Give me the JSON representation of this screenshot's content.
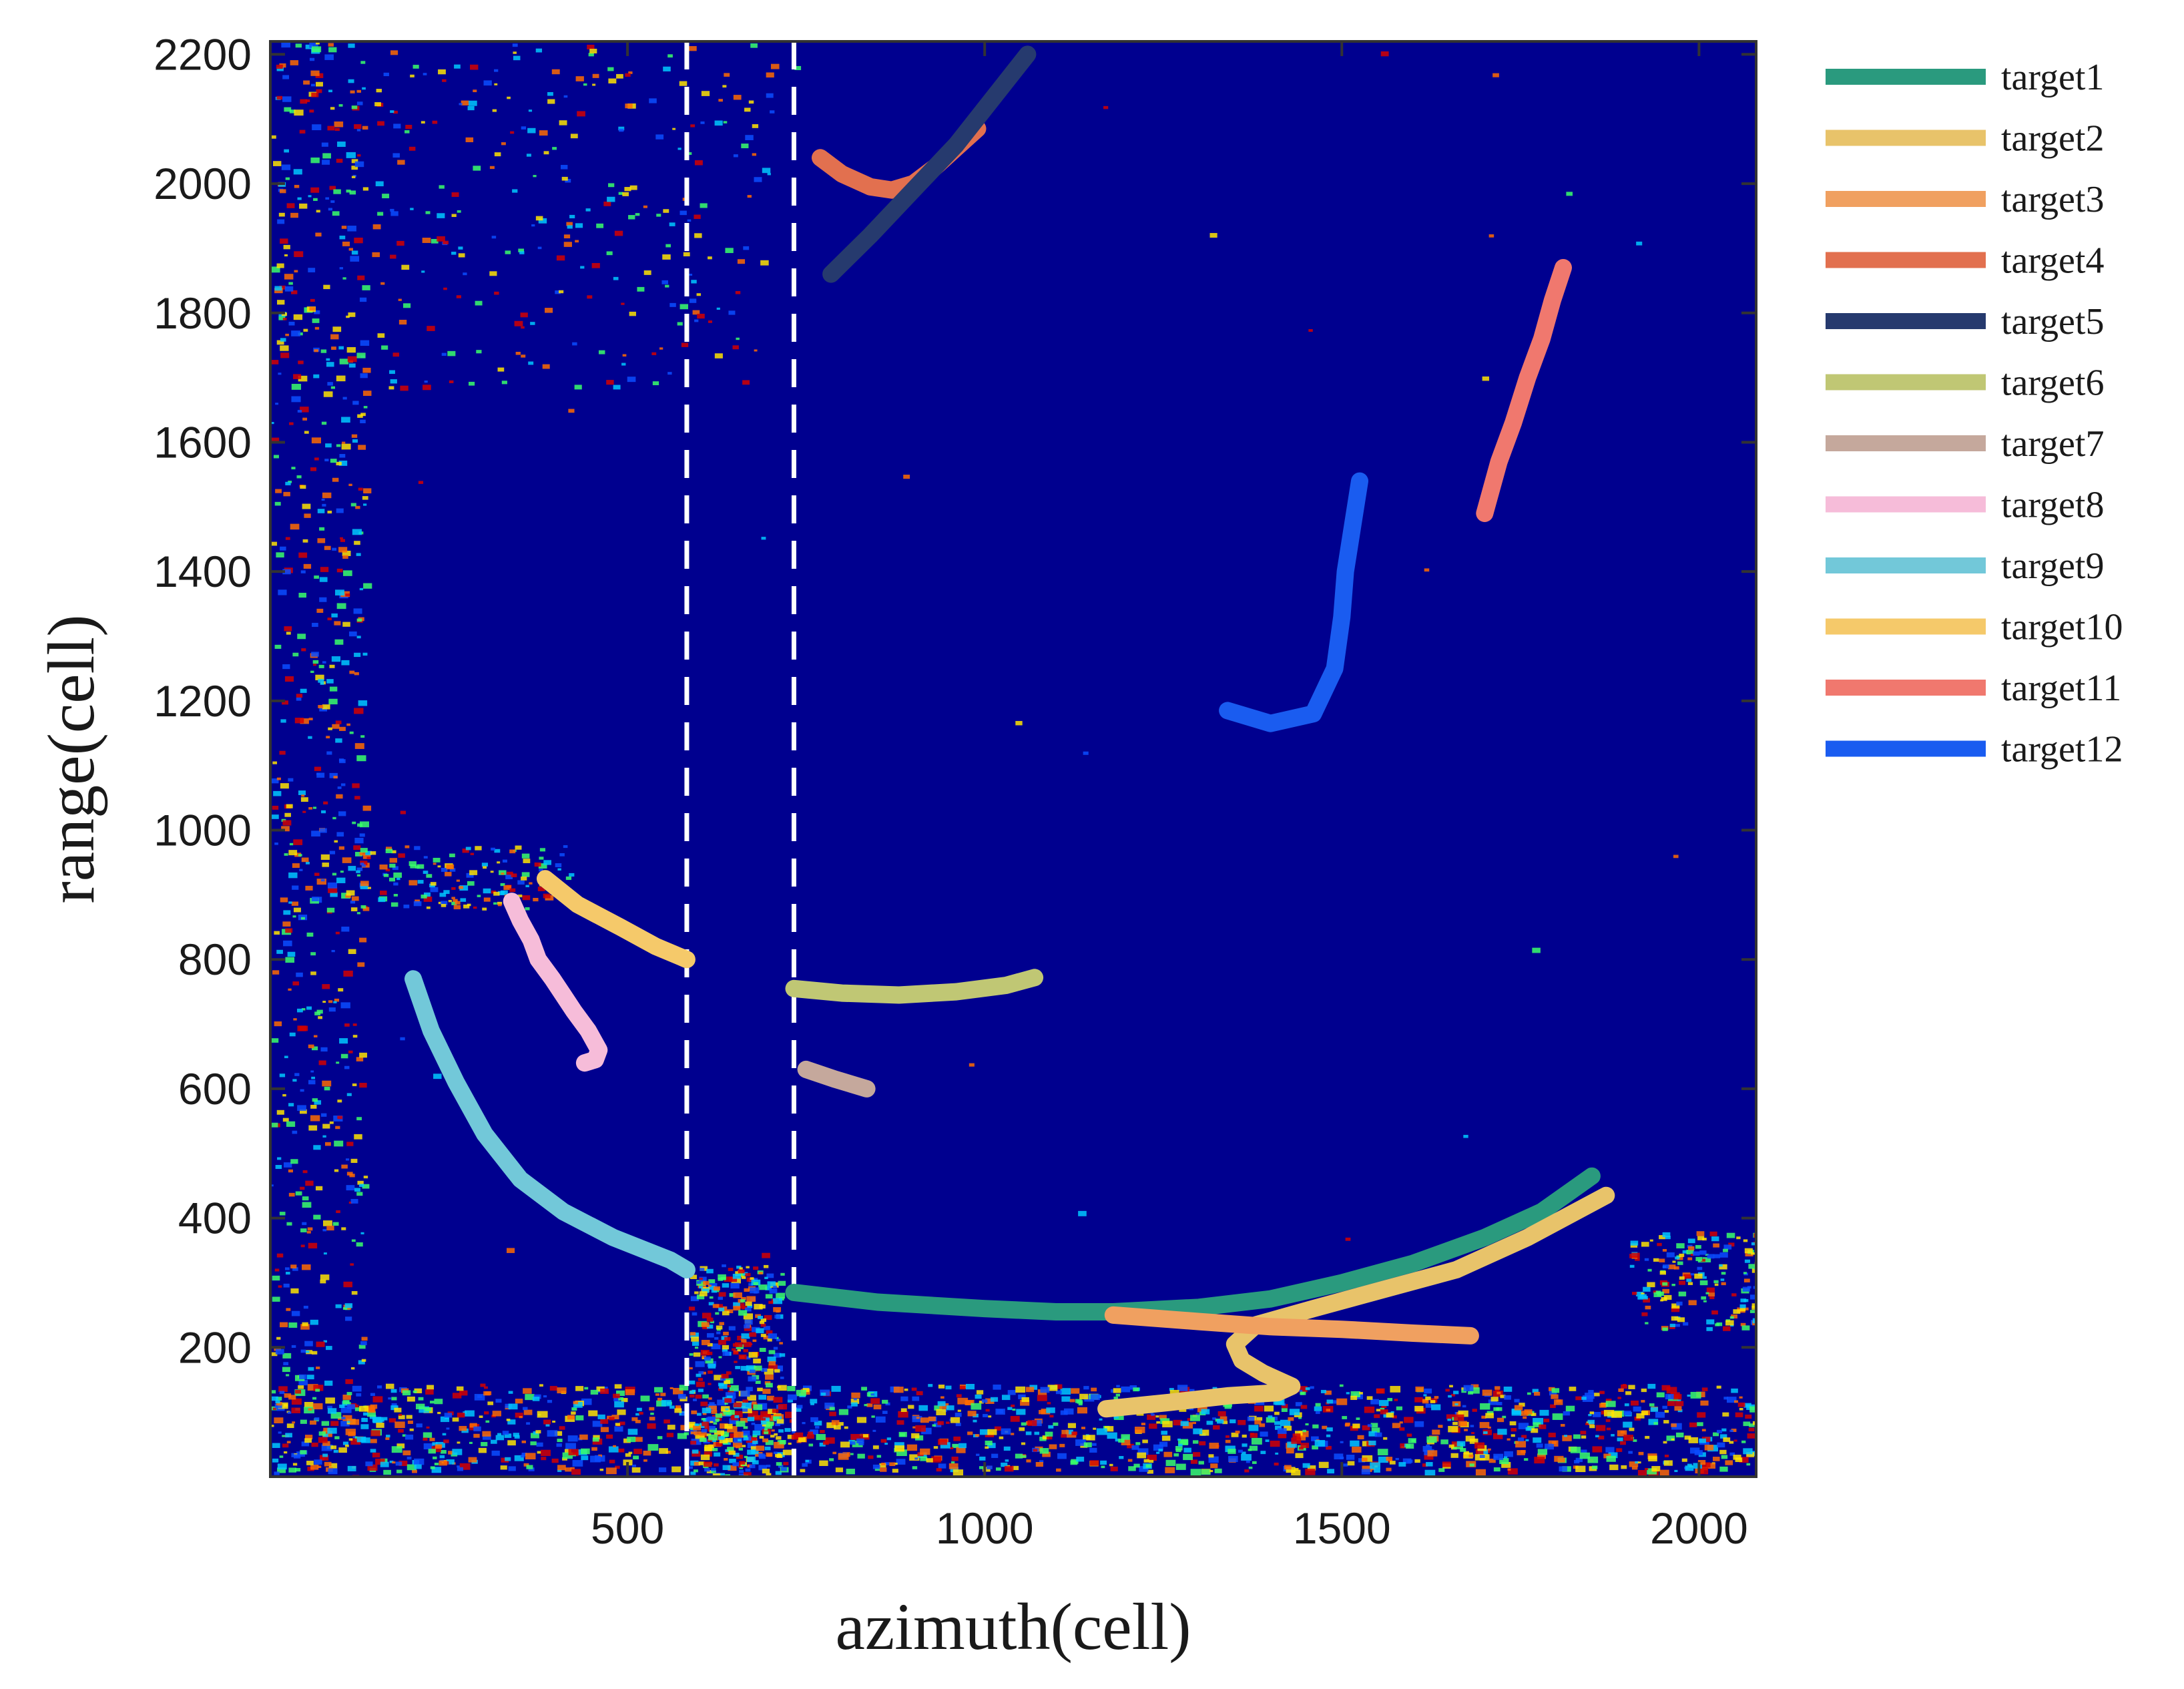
{
  "chart_data": {
    "type": "line",
    "xlabel": "azimuth(cell)",
    "ylabel": "range(cell)",
    "xlim": [
      0,
      2080
    ],
    "ylim": [
      0,
      2220
    ],
    "xticks": [
      500,
      1000,
      1500,
      2000
    ],
    "yticks": [
      200,
      400,
      600,
      800,
      1000,
      1200,
      1400,
      1600,
      1800,
      2000,
      2200
    ],
    "background": "range-azimuth heatmap (jet colormap, mostly dark blue)",
    "grid": false,
    "legend_position": "outside-right",
    "dashed_vertical_lines": [
      583,
      733
    ],
    "series": [
      {
        "name": "target1",
        "color": "#2a9a7e",
        "x": [
          733,
          850,
          1000,
          1100,
          1180,
          1300,
          1400,
          1500,
          1600,
          1700,
          1780,
          1850
        ],
        "y": [
          285,
          270,
          260,
          255,
          255,
          262,
          275,
          300,
          330,
          370,
          410,
          465
        ]
      },
      {
        "name": "target2",
        "color": "#e8c36a",
        "x": [
          1170,
          1260,
          1340,
          1410,
          1430,
          1390,
          1360,
          1350,
          1380,
          1460,
          1560,
          1660,
          1760,
          1870
        ],
        "y": [
          105,
          115,
          125,
          130,
          140,
          160,
          180,
          205,
          235,
          260,
          290,
          320,
          370,
          435
        ]
      },
      {
        "name": "target3",
        "color": "#f0a060",
        "x": [
          1180,
          1300,
          1400,
          1500,
          1600,
          1680
        ],
        "y": [
          250,
          240,
          232,
          228,
          222,
          218
        ]
      },
      {
        "name": "target4",
        "color": "#e2704f",
        "x": [
          770,
          800,
          840,
          870,
          900,
          930,
          960,
          990
        ],
        "y": [
          2040,
          2015,
          1995,
          1990,
          2000,
          2025,
          2055,
          2085
        ]
      },
      {
        "name": "target5",
        "color": "#263a6e",
        "x": [
          785,
          840,
          900,
          960,
          1010,
          1060
        ],
        "y": [
          1860,
          1920,
          1990,
          2060,
          2130,
          2200
        ]
      },
      {
        "name": "target6",
        "color": "#c0c774",
        "x": [
          733,
          800,
          880,
          960,
          1030,
          1070
        ],
        "y": [
          755,
          748,
          745,
          750,
          760,
          772
        ]
      },
      {
        "name": "target7",
        "color": "#c5a89c",
        "x": [
          750,
          790,
          835
        ],
        "y": [
          630,
          615,
          600
        ]
      },
      {
        "name": "target8",
        "color": "#f6bcd9",
        "x": [
          338,
          350,
          365,
          375,
          395,
          410,
          425,
          445,
          460,
          455,
          440
        ],
        "y": [
          890,
          860,
          830,
          800,
          770,
          745,
          720,
          690,
          660,
          645,
          640
        ]
      },
      {
        "name": "target9",
        "color": "#72c8d9",
        "x": [
          200,
          225,
          260,
          300,
          350,
          410,
          480,
          560,
          583
        ],
        "y": [
          770,
          690,
          610,
          530,
          460,
          410,
          370,
          335,
          320
        ]
      },
      {
        "name": "target10",
        "color": "#f5c96a",
        "x": [
          385,
          430,
          490,
          540,
          583
        ],
        "y": [
          925,
          885,
          850,
          820,
          800
        ]
      },
      {
        "name": "target11",
        "color": "#f0786e",
        "x": [
          1700,
          1720,
          1740,
          1760,
          1780,
          1795,
          1810
        ],
        "y": [
          1490,
          1570,
          1630,
          1700,
          1760,
          1820,
          1870
        ]
      },
      {
        "name": "target12",
        "color": "#1a5cf0",
        "x": [
          1340,
          1400,
          1460,
          1490,
          1500,
          1505,
          1515,
          1525
        ],
        "y": [
          1185,
          1165,
          1180,
          1250,
          1330,
          1400,
          1470,
          1540
        ]
      }
    ]
  }
}
